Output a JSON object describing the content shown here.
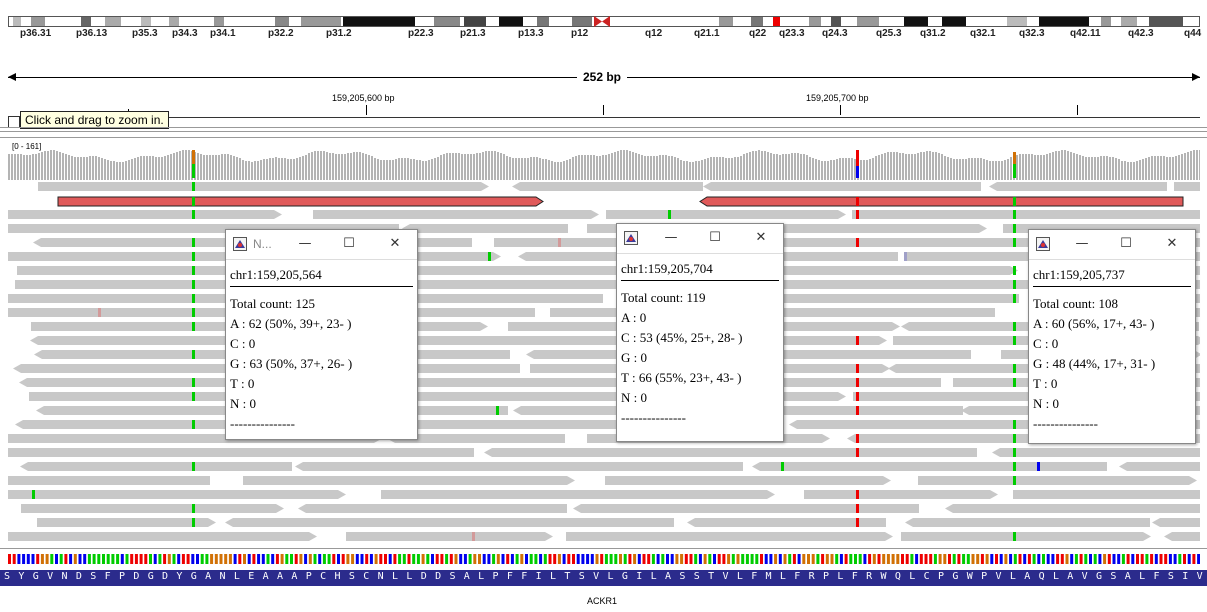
{
  "ideogram": {
    "band_labels": [
      "p36.31",
      "p36.13",
      "p35.3",
      "p34.3",
      "p34.1",
      "p32.2",
      "p31.2",
      "p22.3",
      "p21.3",
      "p13.3",
      "p12",
      "q12",
      "q21.1",
      "q22",
      "q23.3",
      "q24.3",
      "q25.3",
      "q31.2",
      "q32.1",
      "q32.3",
      "q42.11",
      "q42.3",
      "q44"
    ]
  },
  "ruler": {
    "span_label": "252 bp",
    "position_labels": [
      "159,205,600 bp",
      "159,205,700 bp"
    ],
    "zoom_tooltip": "Click and drag to zoom in."
  },
  "coverage": {
    "range_label": "[0 - 161]"
  },
  "sequence": {
    "amino_acids": "SYGVNDSFPDGDYGANLEAAAPCHSCNLLDDSALPFFILTSVLGILASSTVLFMLFRPLFRWQLCPGWPVLAQLAVGSALFSIV",
    "gene_name": "ACKR1"
  },
  "popups": [
    {
      "title": "N...",
      "locus": "chr1:159,205,564",
      "total": "Total count: 125",
      "a": "A : 62 (50%, 39+, 23- )",
      "c": "C : 0",
      "g": "G : 63 (50%, 37+, 26- )",
      "t": "T : 0",
      "n": "N : 0",
      "dashes": "---------------"
    },
    {
      "title": "",
      "locus": "chr1:159,205,704",
      "total": "Total count: 119",
      "a": "A : 0",
      "c": "C : 53 (45%, 25+, 28- )",
      "g": "G : 0",
      "t": "T : 66 (55%, 23+, 43- )",
      "n": "N : 0",
      "dashes": "---------------"
    },
    {
      "title": "",
      "locus": "chr1:159,205,737",
      "total": "Total count: 108",
      "a": "A : 60 (56%, 17+, 43- )",
      "c": "C : 0",
      "g": "G : 48 (44%, 17+, 31- )",
      "t": "T : 0",
      "n": "N : 0",
      "dashes": "---------------"
    }
  ],
  "window_controls": {
    "minimize": "—",
    "maximize": "☐",
    "close": "✕"
  },
  "colors": {
    "read_gray": "#c8c8c8",
    "highlight_read": "#e05a5a",
    "base_a": "#00cc00",
    "base_c": "#0000ee",
    "base_g": "#d17105",
    "base_t": "#ee0000",
    "amino_bg": "#2b2b8c"
  }
}
